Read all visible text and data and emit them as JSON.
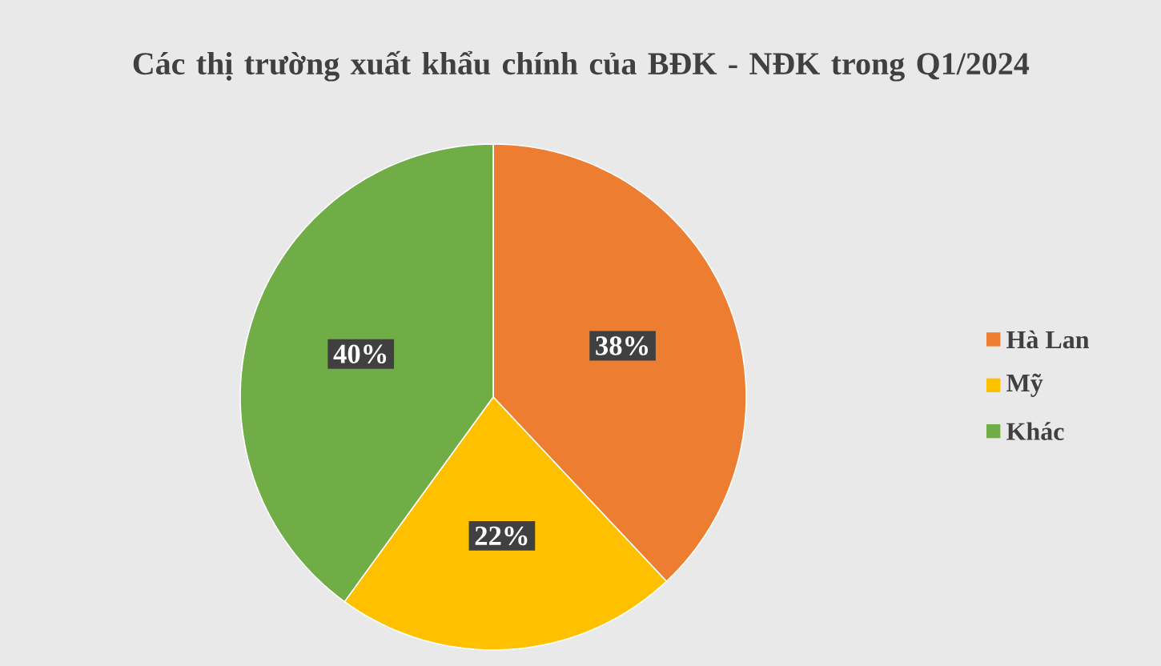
{
  "chart_data": {
    "type": "pie",
    "title": "Các thị trường xuất khẩu chính của BĐK - NĐK trong Q1/2024",
    "categories": [
      "Hà Lan",
      "Mỹ",
      "Khác"
    ],
    "values": [
      38,
      22,
      40
    ],
    "colors": [
      "#ed7d31",
      "#ffc000",
      "#70ad47"
    ],
    "value_labels": [
      "38%",
      "22%",
      "40%"
    ],
    "legend": "right"
  }
}
